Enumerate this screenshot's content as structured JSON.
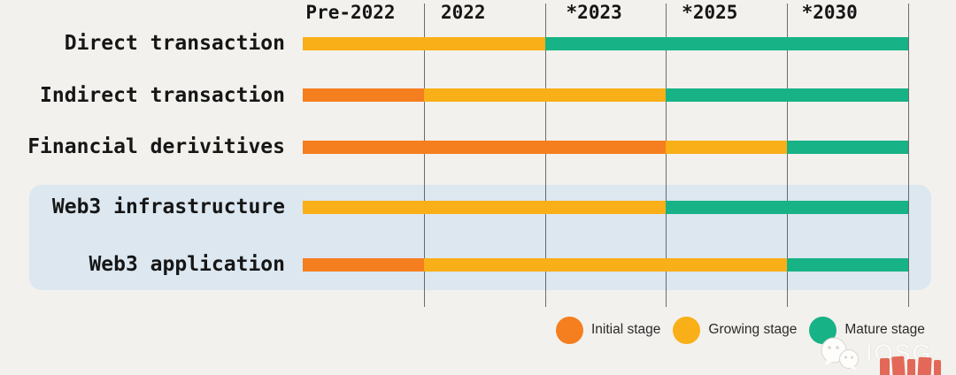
{
  "chart_data": {
    "type": "bar",
    "subtype": "horizontal-timeline-gantt",
    "columns": [
      "Pre-2022",
      "2022",
      "*2023",
      "*2025",
      "*2030"
    ],
    "stage_colors": {
      "initial": "#F57E1F",
      "growing": "#F9AF17",
      "mature": "#17B286"
    },
    "rows": [
      {
        "label": "Direct transaction",
        "highlighted": false,
        "spans": [
          {
            "stage": "growing",
            "cols": 2
          },
          {
            "stage": "mature",
            "cols": 3
          }
        ]
      },
      {
        "label": "Indirect transaction",
        "highlighted": false,
        "spans": [
          {
            "stage": "initial",
            "cols": 1
          },
          {
            "stage": "growing",
            "cols": 2
          },
          {
            "stage": "mature",
            "cols": 2
          }
        ]
      },
      {
        "label": "Financial derivitives",
        "highlighted": false,
        "spans": [
          {
            "stage": "initial",
            "cols": 3
          },
          {
            "stage": "growing",
            "cols": 1
          },
          {
            "stage": "mature",
            "cols": 1
          }
        ]
      },
      {
        "label": "Web3 infrastructure",
        "highlighted": true,
        "spans": [
          {
            "stage": "growing",
            "cols": 3
          },
          {
            "stage": "mature",
            "cols": 2
          }
        ]
      },
      {
        "label": "Web3 application",
        "highlighted": true,
        "spans": [
          {
            "stage": "initial",
            "cols": 1
          },
          {
            "stage": "growing",
            "cols": 3
          },
          {
            "stage": "mature",
            "cols": 1
          }
        ]
      }
    ],
    "legend": [
      {
        "label": "Initial stage",
        "color": "#F57E1F"
      },
      {
        "label": "Growing stage",
        "color": "#F9AF17"
      },
      {
        "label": "Mature stage",
        "color": "#17B286"
      }
    ],
    "legend_position": "bottom-right",
    "grid": "vertical lines at column boundaries"
  },
  "watermark": {
    "brand": "IOSG",
    "icon": "wechat-icon",
    "stamp": "clipped-red-glyphs"
  },
  "colors": {
    "background": "#F2F1ED",
    "highlight_panel": "#DCE7F0",
    "gridline": "#3F3F3F",
    "text": "#161616",
    "stamp_red": "#E0503C"
  }
}
